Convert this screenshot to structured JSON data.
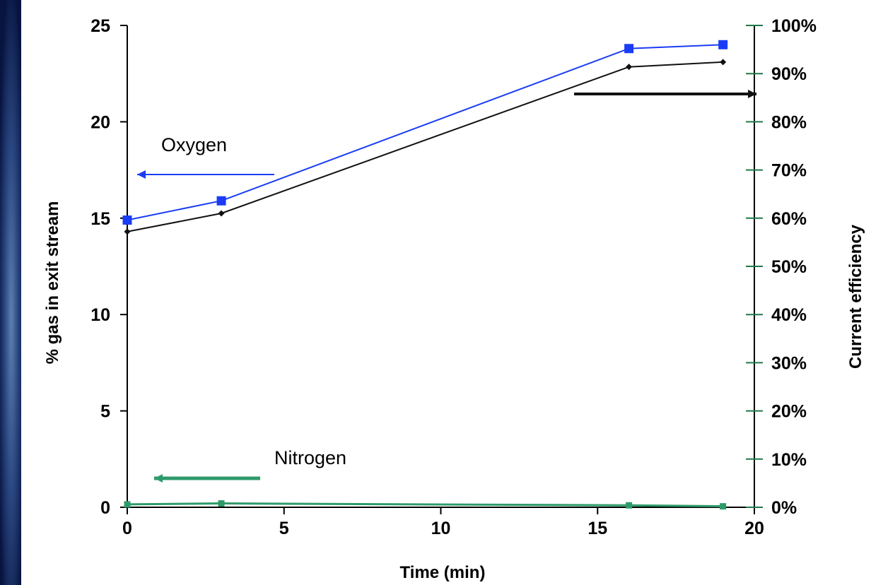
{
  "chart_data": {
    "type": "line",
    "title": "",
    "xlabel": "Time (min)",
    "ylabel": "% gas in exit stream",
    "y2label": "Current efficiency",
    "xlim": [
      0,
      20
    ],
    "ylim": [
      0,
      25
    ],
    "y2lim": [
      0,
      100
    ],
    "x_ticks": [
      0,
      5,
      10,
      15,
      20
    ],
    "y_ticks": [
      0,
      5,
      10,
      15,
      20,
      25
    ],
    "y2_ticks": [
      "0%",
      "10%",
      "20%",
      "30%",
      "40%",
      "50%",
      "60%",
      "70%",
      "80%",
      "90%",
      "100%"
    ],
    "grid": false,
    "series": [
      {
        "name": "Oxygen",
        "axis": "left",
        "color": "#1a3cf5",
        "marker": "square",
        "x": [
          0,
          3,
          16,
          19
        ],
        "y": [
          14.9,
          15.9,
          23.8,
          24.0
        ]
      },
      {
        "name": "Nitrogen",
        "axis": "left",
        "color": "#2e9a6a",
        "marker": "square",
        "x": [
          0,
          3,
          16,
          19
        ],
        "y": [
          0.15,
          0.2,
          0.1,
          0.05
        ]
      },
      {
        "axis": "right",
        "color": "#111111",
        "marker": "diamond",
        "x": [
          0,
          3,
          16,
          19
        ],
        "y": [
          57.2,
          61.0,
          91.4,
          92.4
        ]
      }
    ],
    "annotations": [
      {
        "text": "Oxygen",
        "points_to": "left"
      },
      {
        "text": "Nitrogen",
        "points_to": "left"
      },
      {
        "text": "",
        "points_to": "right"
      }
    ]
  }
}
